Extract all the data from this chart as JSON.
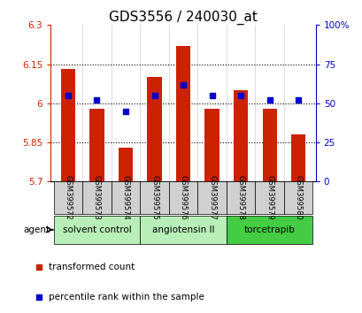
{
  "title": "GDS3556 / 240030_at",
  "samples": [
    "GSM399572",
    "GSM399573",
    "GSM399574",
    "GSM399575",
    "GSM399576",
    "GSM399577",
    "GSM399578",
    "GSM399579",
    "GSM399580"
  ],
  "red_values": [
    6.13,
    5.98,
    5.83,
    6.1,
    6.22,
    5.98,
    6.05,
    5.98,
    5.88
  ],
  "blue_values": [
    55,
    52,
    45,
    55,
    62,
    55,
    55,
    52,
    52
  ],
  "ylim_left": [
    5.7,
    6.3
  ],
  "ylim_right": [
    0,
    100
  ],
  "yticks_left": [
    5.7,
    5.85,
    6.0,
    6.15,
    6.3
  ],
  "yticks_right": [
    0,
    25,
    50,
    75,
    100
  ],
  "ytick_labels_left": [
    "5.7",
    "5.85",
    "6",
    "6.15",
    "6.3"
  ],
  "ytick_labels_right": [
    "0",
    "25",
    "50",
    "75",
    "100%"
  ],
  "hlines": [
    5.85,
    6.0,
    6.15
  ],
  "agent_groups": [
    {
      "label": "solvent control",
      "start": 0,
      "end": 3,
      "color": "#b8eeb8"
    },
    {
      "label": "angiotensin II",
      "start": 3,
      "end": 6,
      "color": "#b8eeb8"
    },
    {
      "label": "torcetrapib",
      "start": 6,
      "end": 9,
      "color": "#44cc44"
    }
  ],
  "bar_color": "#cc2200",
  "dot_color": "#0000cc",
  "bar_width": 0.5,
  "agent_label": "agent",
  "legend_items": [
    {
      "color": "#cc2200",
      "label": "transformed count"
    },
    {
      "color": "#0000cc",
      "label": "percentile rank within the sample"
    }
  ],
  "title_fontsize": 11,
  "tick_fontsize": 7.5,
  "axis_color_left": "#cc2200",
  "axis_color_right": "#0000cc",
  "sample_box_color": "#d0d0d0",
  "fig_width": 4.1,
  "fig_height": 3.54,
  "dpi": 100
}
